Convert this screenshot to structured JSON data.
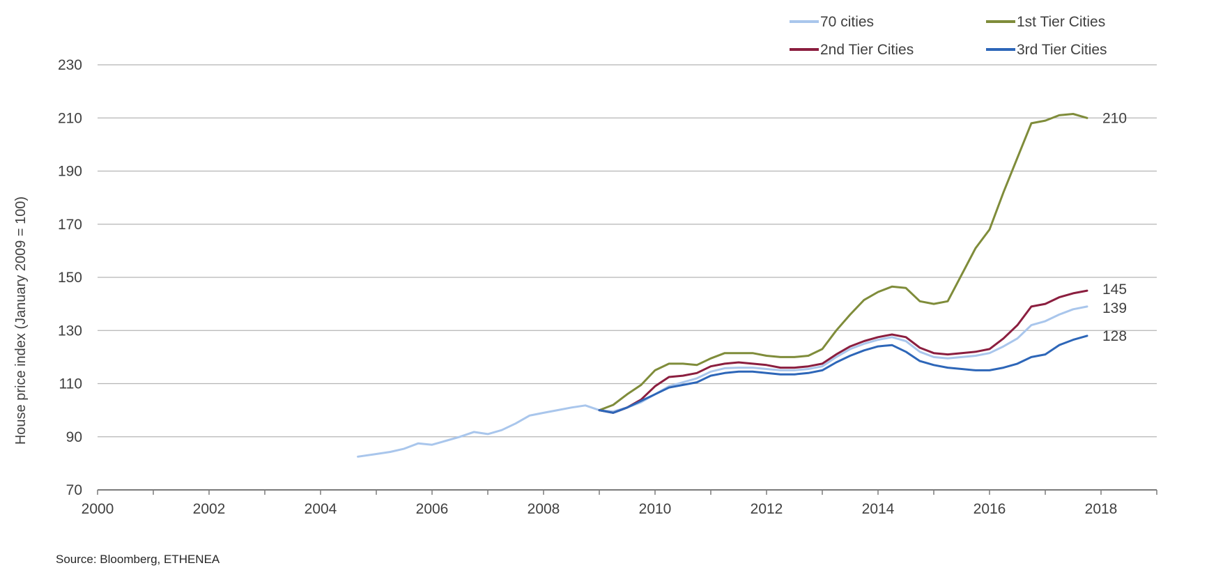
{
  "chart_data": {
    "type": "line",
    "title": "",
    "xlabel": "",
    "ylabel": "House price index (January 2009 = 100)",
    "xlim": [
      2000,
      2019
    ],
    "ylim": [
      70,
      230
    ],
    "x_ticks": [
      "2000",
      "2002",
      "2004",
      "2006",
      "2008",
      "2010",
      "2012",
      "2014",
      "2016",
      "2018"
    ],
    "y_ticks": [
      "70",
      "90",
      "110",
      "130",
      "150",
      "170",
      "190",
      "210",
      "230"
    ],
    "grid": true,
    "legend_position": "top-right",
    "series": [
      {
        "name": "70 cities",
        "color": "#a9c6ec",
        "end_label": "139",
        "points": [
          [
            2004.67,
            82.5
          ],
          [
            2005.0,
            83.5
          ],
          [
            2005.25,
            84.3
          ],
          [
            2005.5,
            85.5
          ],
          [
            2005.75,
            87.5
          ],
          [
            2006.0,
            87.0
          ],
          [
            2006.25,
            88.5
          ],
          [
            2006.5,
            90.0
          ],
          [
            2006.75,
            91.8
          ],
          [
            2007.0,
            91.0
          ],
          [
            2007.25,
            92.5
          ],
          [
            2007.5,
            95.0
          ],
          [
            2007.75,
            98.0
          ],
          [
            2008.0,
            99.0
          ],
          [
            2008.25,
            100.0
          ],
          [
            2008.5,
            101.0
          ],
          [
            2008.75,
            101.8
          ],
          [
            2009.0,
            100.0
          ],
          [
            2009.25,
            99.5
          ],
          [
            2009.5,
            101.0
          ],
          [
            2009.75,
            103.0
          ],
          [
            2010.0,
            106.0
          ],
          [
            2010.25,
            109.0
          ],
          [
            2010.5,
            110.5
          ],
          [
            2010.75,
            112.0
          ],
          [
            2011.0,
            114.5
          ],
          [
            2011.25,
            115.8
          ],
          [
            2011.5,
            116.0
          ],
          [
            2011.75,
            116.0
          ],
          [
            2012.0,
            115.5
          ],
          [
            2012.25,
            115.0
          ],
          [
            2012.5,
            115.0
          ],
          [
            2012.75,
            115.5
          ],
          [
            2013.0,
            116.5
          ],
          [
            2013.25,
            120.0
          ],
          [
            2013.5,
            123.0
          ],
          [
            2013.75,
            125.0
          ],
          [
            2014.0,
            126.5
          ],
          [
            2014.25,
            127.5
          ],
          [
            2014.5,
            126.0
          ],
          [
            2014.75,
            122.0
          ],
          [
            2015.0,
            120.0
          ],
          [
            2015.25,
            119.5
          ],
          [
            2015.5,
            120.0
          ],
          [
            2015.75,
            120.5
          ],
          [
            2016.0,
            121.5
          ],
          [
            2016.25,
            124.0
          ],
          [
            2016.5,
            127.0
          ],
          [
            2016.75,
            132.0
          ],
          [
            2017.0,
            133.5
          ],
          [
            2017.25,
            136.0
          ],
          [
            2017.5,
            138.0
          ],
          [
            2017.75,
            139.0
          ]
        ]
      },
      {
        "name": "1st Tier Cities",
        "color": "#7f8c3a",
        "end_label": "210",
        "points": [
          [
            2009.0,
            100.0
          ],
          [
            2009.25,
            102.0
          ],
          [
            2009.5,
            106.0
          ],
          [
            2009.75,
            109.5
          ],
          [
            2010.0,
            115.0
          ],
          [
            2010.25,
            117.5
          ],
          [
            2010.5,
            117.5
          ],
          [
            2010.75,
            117.0
          ],
          [
            2011.0,
            119.5
          ],
          [
            2011.25,
            121.5
          ],
          [
            2011.5,
            121.5
          ],
          [
            2011.75,
            121.5
          ],
          [
            2012.0,
            120.5
          ],
          [
            2012.25,
            120.0
          ],
          [
            2012.5,
            120.0
          ],
          [
            2012.75,
            120.5
          ],
          [
            2013.0,
            123.0
          ],
          [
            2013.25,
            130.0
          ],
          [
            2013.5,
            136.0
          ],
          [
            2013.75,
            141.5
          ],
          [
            2014.0,
            144.5
          ],
          [
            2014.25,
            146.5
          ],
          [
            2014.5,
            146.0
          ],
          [
            2014.75,
            141.0
          ],
          [
            2015.0,
            140.0
          ],
          [
            2015.25,
            141.0
          ],
          [
            2015.5,
            151.0
          ],
          [
            2015.75,
            161.0
          ],
          [
            2016.0,
            168.0
          ],
          [
            2016.25,
            182.0
          ],
          [
            2016.5,
            195.0
          ],
          [
            2016.75,
            208.0
          ],
          [
            2017.0,
            209.0
          ],
          [
            2017.25,
            211.0
          ],
          [
            2017.5,
            211.5
          ],
          [
            2017.75,
            210.0
          ]
        ]
      },
      {
        "name": "2nd Tier Cities",
        "color": "#8b1e3f",
        "end_label": "145",
        "points": [
          [
            2009.0,
            100.0
          ],
          [
            2009.25,
            99.0
          ],
          [
            2009.5,
            101.0
          ],
          [
            2009.75,
            104.0
          ],
          [
            2010.0,
            109.0
          ],
          [
            2010.25,
            112.5
          ],
          [
            2010.5,
            113.0
          ],
          [
            2010.75,
            114.0
          ],
          [
            2011.0,
            116.5
          ],
          [
            2011.25,
            117.5
          ],
          [
            2011.5,
            118.0
          ],
          [
            2011.75,
            117.5
          ],
          [
            2012.0,
            117.0
          ],
          [
            2012.25,
            116.0
          ],
          [
            2012.5,
            116.0
          ],
          [
            2012.75,
            116.5
          ],
          [
            2013.0,
            117.5
          ],
          [
            2013.25,
            121.0
          ],
          [
            2013.5,
            124.0
          ],
          [
            2013.75,
            126.0
          ],
          [
            2014.0,
            127.5
          ],
          [
            2014.25,
            128.5
          ],
          [
            2014.5,
            127.5
          ],
          [
            2014.75,
            123.5
          ],
          [
            2015.0,
            121.5
          ],
          [
            2015.25,
            121.0
          ],
          [
            2015.5,
            121.5
          ],
          [
            2015.75,
            122.0
          ],
          [
            2016.0,
            123.0
          ],
          [
            2016.25,
            127.0
          ],
          [
            2016.5,
            132.0
          ],
          [
            2016.75,
            139.0
          ],
          [
            2017.0,
            140.0
          ],
          [
            2017.25,
            142.5
          ],
          [
            2017.5,
            144.0
          ],
          [
            2017.75,
            145.0
          ]
        ]
      },
      {
        "name": "3rd Tier Cities",
        "color": "#2d66b8",
        "end_label": "128",
        "points": [
          [
            2009.0,
            100.0
          ],
          [
            2009.25,
            99.0
          ],
          [
            2009.5,
            101.0
          ],
          [
            2009.75,
            103.5
          ],
          [
            2010.0,
            106.0
          ],
          [
            2010.25,
            108.5
          ],
          [
            2010.5,
            109.5
          ],
          [
            2010.75,
            110.5
          ],
          [
            2011.0,
            113.0
          ],
          [
            2011.25,
            114.0
          ],
          [
            2011.5,
            114.5
          ],
          [
            2011.75,
            114.5
          ],
          [
            2012.0,
            114.0
          ],
          [
            2012.25,
            113.5
          ],
          [
            2012.5,
            113.5
          ],
          [
            2012.75,
            114.0
          ],
          [
            2013.0,
            115.0
          ],
          [
            2013.25,
            118.0
          ],
          [
            2013.5,
            120.5
          ],
          [
            2013.75,
            122.5
          ],
          [
            2014.0,
            124.0
          ],
          [
            2014.25,
            124.5
          ],
          [
            2014.5,
            122.0
          ],
          [
            2014.75,
            118.5
          ],
          [
            2015.0,
            117.0
          ],
          [
            2015.25,
            116.0
          ],
          [
            2015.5,
            115.5
          ],
          [
            2015.75,
            115.0
          ],
          [
            2016.0,
            115.0
          ],
          [
            2016.25,
            116.0
          ],
          [
            2016.5,
            117.5
          ],
          [
            2016.75,
            120.0
          ],
          [
            2017.0,
            121.0
          ],
          [
            2017.25,
            124.5
          ],
          [
            2017.5,
            126.5
          ],
          [
            2017.75,
            128.0
          ]
        ]
      }
    ]
  },
  "source": "Source: Bloomberg, ETHENEA"
}
